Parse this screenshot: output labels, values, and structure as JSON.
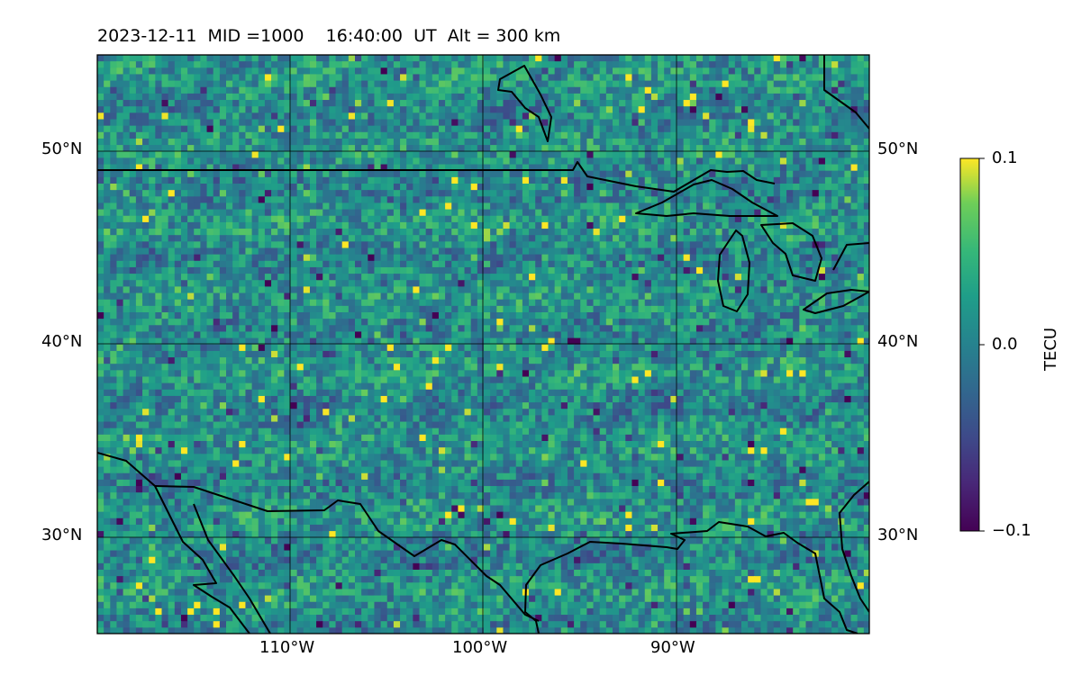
{
  "header": {
    "date": "2023-12-11",
    "mid": "MID =1000",
    "time": "16:40:00",
    "ut": "UT",
    "alt": "Alt = 300 km"
  },
  "map": {
    "extent": {
      "lon": [
        -120,
        -80
      ],
      "lat": [
        25,
        55
      ]
    },
    "lat_labels": [
      "50°N",
      "40°N",
      "30°N"
    ],
    "lon_labels": [
      "110°W",
      "100°W",
      "90°W"
    ]
  },
  "colorbar": {
    "title": "TECU",
    "ticks": [
      "0.1",
      "0.0",
      "−0.1"
    ],
    "range": [
      -0.1,
      0.1
    ],
    "colormap": "viridis"
  },
  "colors": {
    "low": "#440154",
    "mid": "#21918c",
    "high": "#fde725"
  }
}
